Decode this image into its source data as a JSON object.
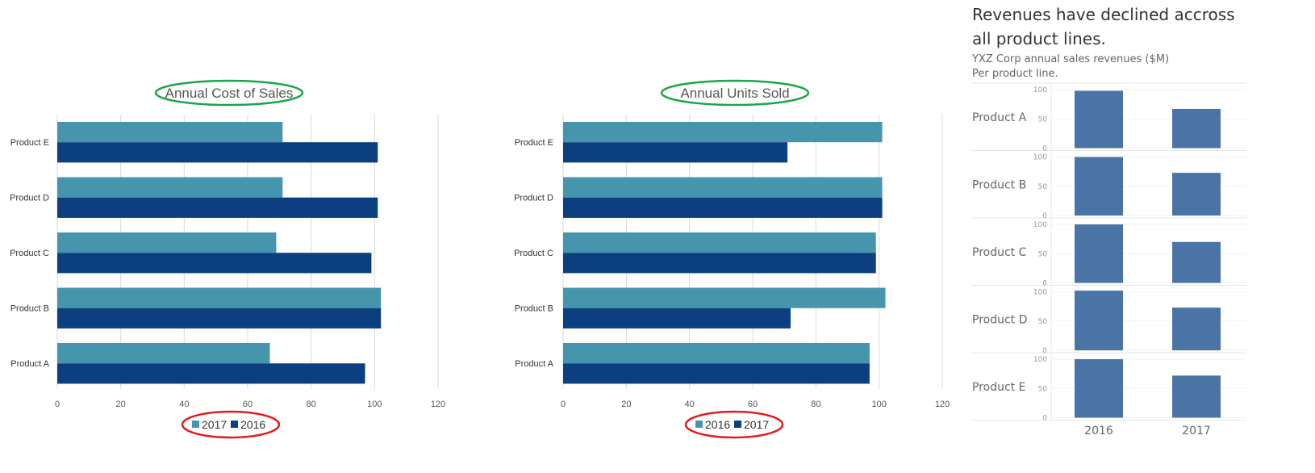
{
  "chart_data": [
    {
      "type": "bar",
      "orientation": "horizontal",
      "title": "Annual Cost of Sales",
      "categories": [
        "Product E",
        "Product D",
        "Product C",
        "Product B",
        "Product A"
      ],
      "series": [
        {
          "name": "2017",
          "color": "#4596ad",
          "values": [
            71,
            71,
            69,
            102,
            67
          ]
        },
        {
          "name": "2016",
          "color": "#0b3f80",
          "values": [
            101,
            101,
            99,
            102,
            97
          ]
        }
      ],
      "xlim": [
        0,
        120
      ],
      "xticks": [
        "0",
        "20",
        "40",
        "60",
        "80",
        "100",
        "120"
      ],
      "grid": true,
      "legend": "bottom",
      "annotations": {
        "title_circle_color": "#1aa64a",
        "legend_circle_color": "#e31b1b"
      }
    },
    {
      "type": "bar",
      "orientation": "horizontal",
      "title": "Annual Units Sold",
      "categories": [
        "Product E",
        "Product D",
        "Product C",
        "Product B",
        "Product A"
      ],
      "series": [
        {
          "name": "2016",
          "color": "#4596ad",
          "values": [
            101,
            101,
            99,
            102,
            97
          ]
        },
        {
          "name": "2017",
          "color": "#0b3f80",
          "values": [
            71,
            101,
            99,
            72,
            97
          ]
        }
      ],
      "xlim": [
        0,
        120
      ],
      "xticks": [
        "0",
        "20",
        "40",
        "60",
        "80",
        "100",
        "120"
      ],
      "grid": true,
      "legend": "bottom",
      "annotations": {
        "title_circle_color": "#1aa64a",
        "legend_circle_color": "#e31b1b"
      }
    },
    {
      "type": "bar",
      "orientation": "vertical",
      "layout": "small multiples",
      "title": "Revenues have declined accross all product lines.",
      "subtitle": [
        "YXZ Corp annual sales revenues ($M)",
        "Per product line."
      ],
      "row_labels": [
        "Product A",
        "Product B",
        "Product C",
        "Product D",
        "Product E"
      ],
      "categories": [
        "2016",
        "2017"
      ],
      "values": [
        [
          98,
          67
        ],
        [
          100,
          73
        ],
        [
          100,
          70
        ],
        [
          102,
          73
        ],
        [
          100,
          72
        ]
      ],
      "yticks": [
        "100",
        "50",
        "0"
      ],
      "ylim": [
        0,
        100
      ],
      "color": "#4b74a6"
    }
  ]
}
